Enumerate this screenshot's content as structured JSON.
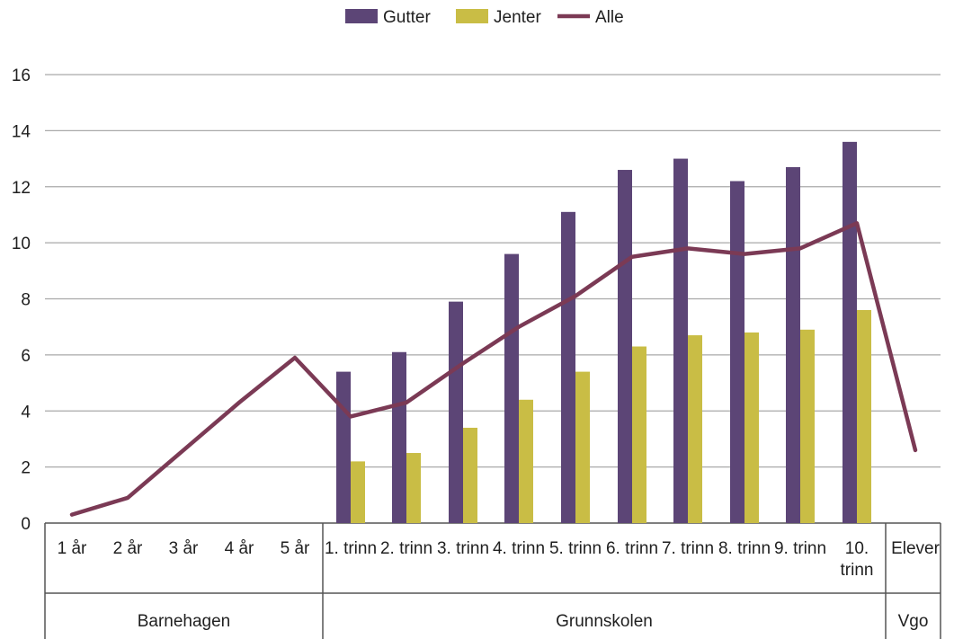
{
  "chart_data": {
    "type": "bar",
    "ylim": [
      0,
      16
    ],
    "yticks": [
      0,
      2,
      4,
      6,
      8,
      10,
      12,
      14,
      16
    ],
    "grid": true,
    "legend_position": "top-center",
    "categories": [
      "1 år",
      "2 år",
      "3 år",
      "4 år",
      "5 år",
      "1. trinn",
      "2. trinn",
      "3. trinn",
      "4. trinn",
      "5. trinn",
      "6. trinn",
      "7. trinn",
      "8. trinn",
      "9. trinn",
      "10. trinn",
      "Elever"
    ],
    "groups": [
      {
        "label": "Barnehagen",
        "start": 0,
        "end": 4
      },
      {
        "label": "Grunnskolen",
        "start": 5,
        "end": 14
      },
      {
        "label": "Vgo",
        "start": 15,
        "end": 15
      }
    ],
    "series": [
      {
        "name": "Gutter",
        "type": "bar",
        "color": "#5c4576",
        "values": [
          null,
          null,
          null,
          null,
          null,
          5.4,
          6.1,
          7.9,
          9.6,
          11.1,
          12.6,
          13.0,
          12.2,
          12.7,
          13.6,
          null
        ]
      },
      {
        "name": "Jenter",
        "type": "bar",
        "color": "#c9bd45",
        "values": [
          null,
          null,
          null,
          null,
          null,
          2.2,
          2.5,
          3.4,
          4.4,
          5.4,
          6.3,
          6.7,
          6.8,
          6.9,
          7.6,
          null
        ]
      },
      {
        "name": "Alle",
        "type": "line",
        "color": "#7b3a55",
        "values": [
          0.3,
          0.9,
          2.6,
          4.3,
          5.9,
          3.8,
          4.3,
          5.7,
          7.0,
          8.1,
          9.5,
          9.8,
          9.6,
          9.8,
          10.7,
          2.6
        ]
      }
    ]
  }
}
